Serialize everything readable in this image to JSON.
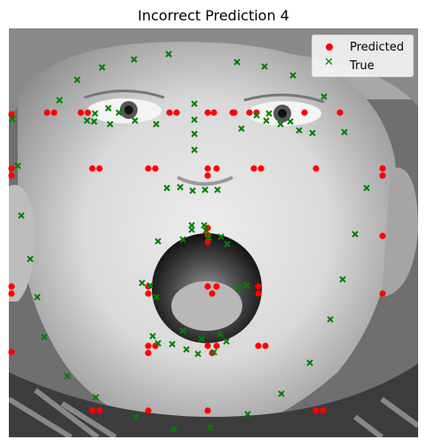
{
  "chart_data": {
    "type": "scatter",
    "title": "Incorrect Prediction 4",
    "xlabel": "",
    "ylabel": "",
    "background": "grayscale photo of a child's face with open mouth",
    "series": [
      {
        "name": "Predicted",
        "marker": "circle",
        "color": "#ff0000",
        "points": [
          [
            3,
            97
          ],
          [
            43,
            95
          ],
          [
            51,
            95
          ],
          [
            81,
            95
          ],
          [
            89,
            95
          ],
          [
            181,
            95
          ],
          [
            189,
            95
          ],
          [
            224,
            95
          ],
          [
            231,
            95
          ],
          [
            252,
            95
          ],
          [
            254,
            95
          ],
          [
            271,
            95
          ],
          [
            279,
            95
          ],
          [
            333,
            95
          ],
          [
            373,
            95
          ],
          [
            3,
            158
          ],
          [
            3,
            166
          ],
          [
            94,
            158
          ],
          [
            102,
            158
          ],
          [
            157,
            158
          ],
          [
            165,
            158
          ],
          [
            224,
            158
          ],
          [
            224,
            166
          ],
          [
            234,
            158
          ],
          [
            276,
            158
          ],
          [
            284,
            158
          ],
          [
            346,
            158
          ],
          [
            421,
            158
          ],
          [
            421,
            166
          ],
          [
            224,
            225
          ],
          [
            224,
            233
          ],
          [
            224,
            241
          ],
          [
            421,
            234
          ],
          [
            3,
            291
          ],
          [
            3,
            299
          ],
          [
            157,
            291
          ],
          [
            157,
            299
          ],
          [
            224,
            291
          ],
          [
            229,
            299
          ],
          [
            234,
            291
          ],
          [
            281,
            291
          ],
          [
            281,
            299
          ],
          [
            421,
            299
          ],
          [
            3,
            365
          ],
          [
            157,
            358
          ],
          [
            165,
            358
          ],
          [
            157,
            366
          ],
          [
            224,
            358
          ],
          [
            229,
            366
          ],
          [
            234,
            358
          ],
          [
            281,
            358
          ],
          [
            289,
            358
          ],
          [
            94,
            431
          ],
          [
            102,
            431
          ],
          [
            157,
            431
          ],
          [
            224,
            431
          ],
          [
            346,
            431
          ],
          [
            354,
            431
          ]
        ]
      },
      {
        "name": "True",
        "marker": "x",
        "color": "#008000",
        "points": [
          [
            4,
            102
          ],
          [
            10,
            155
          ],
          [
            14,
            211
          ],
          [
            24,
            260
          ],
          [
            32,
            303
          ],
          [
            40,
            348
          ],
          [
            66,
            392
          ],
          [
            98,
            416
          ],
          [
            143,
            438
          ],
          [
            186,
            452
          ],
          [
            227,
            450
          ],
          [
            269,
            435
          ],
          [
            307,
            412
          ],
          [
            339,
            377
          ],
          [
            362,
            328
          ],
          [
            376,
            283
          ],
          [
            390,
            232
          ],
          [
            403,
            180
          ],
          [
            378,
            117
          ],
          [
            355,
            77
          ],
          [
            320,
            53
          ],
          [
            288,
            43
          ],
          [
            257,
            38
          ],
          [
            180,
            29
          ],
          [
            141,
            35
          ],
          [
            105,
            44
          ],
          [
            77,
            58
          ],
          [
            57,
            81
          ],
          [
            209,
            85
          ],
          [
            209,
            103
          ],
          [
            209,
            119
          ],
          [
            209,
            137
          ],
          [
            178,
            180
          ],
          [
            193,
            179
          ],
          [
            207,
            183
          ],
          [
            221,
            182
          ],
          [
            235,
            182
          ],
          [
            88,
            104
          ],
          [
            97,
            96
          ],
          [
            112,
            90
          ],
          [
            124,
            95
          ],
          [
            142,
            104
          ],
          [
            166,
            108
          ],
          [
            114,
            108
          ],
          [
            96,
            105
          ],
          [
            262,
            113
          ],
          [
            279,
            98
          ],
          [
            293,
            96
          ],
          [
            306,
            108
          ],
          [
            327,
            115
          ],
          [
            342,
            118
          ],
          [
            317,
            105
          ],
          [
            290,
            104
          ],
          [
            168,
            240
          ],
          [
            196,
            238
          ],
          [
            206,
            222
          ],
          [
            220,
            222
          ],
          [
            225,
            236
          ],
          [
            239,
            235
          ],
          [
            246,
            243
          ],
          [
            258,
            293
          ],
          [
            268,
            290
          ],
          [
            245,
            353
          ],
          [
            231,
            365
          ],
          [
            213,
            367
          ],
          [
            200,
            362
          ],
          [
            184,
            356
          ],
          [
            168,
            355
          ],
          [
            162,
            347
          ],
          [
            196,
            341
          ],
          [
            217,
            350
          ],
          [
            238,
            345
          ],
          [
            206,
            227
          ],
          [
            222,
            228
          ],
          [
            150,
            287
          ],
          [
            159,
            290
          ],
          [
            166,
            303
          ]
        ]
      }
    ],
    "legend": {
      "position": "top-right",
      "entries": [
        "Predicted",
        "True"
      ]
    }
  }
}
